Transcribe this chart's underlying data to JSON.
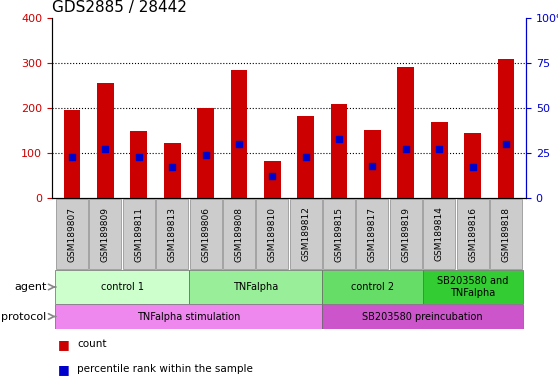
{
  "title": "GDS2885 / 28442",
  "samples": [
    "GSM189807",
    "GSM189809",
    "GSM189811",
    "GSM189813",
    "GSM189806",
    "GSM189808",
    "GSM189810",
    "GSM189812",
    "GSM189815",
    "GSM189817",
    "GSM189819",
    "GSM189814",
    "GSM189816",
    "GSM189818"
  ],
  "count_values": [
    195,
    255,
    150,
    122,
    200,
    285,
    82,
    182,
    208,
    152,
    292,
    168,
    145,
    308
  ],
  "percentile_values": [
    23,
    27,
    23,
    17,
    24,
    30,
    12,
    23,
    33,
    18,
    27,
    27,
    17,
    30
  ],
  "ylim_left": [
    0,
    400
  ],
  "ylim_right": [
    0,
    100
  ],
  "yticks_left": [
    0,
    100,
    200,
    300,
    400
  ],
  "ytick_labels_right": [
    "0",
    "25",
    "50",
    "75",
    "100%"
  ],
  "bar_color": "#cc0000",
  "percentile_color": "#0000cc",
  "bar_width": 0.5,
  "agent_groups": [
    {
      "label": "control 1",
      "start": 0,
      "end": 4,
      "color": "#ccffcc"
    },
    {
      "label": "TNFalpha",
      "start": 4,
      "end": 8,
      "color": "#99ee99"
    },
    {
      "label": "control 2",
      "start": 8,
      "end": 11,
      "color": "#66dd66"
    },
    {
      "label": "SB203580 and\nTNFalpha",
      "start": 11,
      "end": 14,
      "color": "#33cc33"
    }
  ],
  "protocol_groups": [
    {
      "label": "TNFalpha stimulation",
      "start": 0,
      "end": 8,
      "color": "#ee88ee"
    },
    {
      "label": "SB203580 preincubation",
      "start": 8,
      "end": 14,
      "color": "#cc55cc"
    }
  ],
  "legend_items": [
    {
      "label": "count",
      "color": "#cc0000"
    },
    {
      "label": "percentile rank within the sample",
      "color": "#0000cc"
    }
  ],
  "left_axis_color": "#cc0000",
  "right_axis_color": "#0000cc",
  "agent_label": "agent",
  "protocol_label": "protocol",
  "sample_box_color": "#cccccc",
  "title_fontsize": 11,
  "tick_fontsize": 8,
  "label_fontsize": 8,
  "sample_fontsize": 6.5,
  "group_fontsize": 7
}
